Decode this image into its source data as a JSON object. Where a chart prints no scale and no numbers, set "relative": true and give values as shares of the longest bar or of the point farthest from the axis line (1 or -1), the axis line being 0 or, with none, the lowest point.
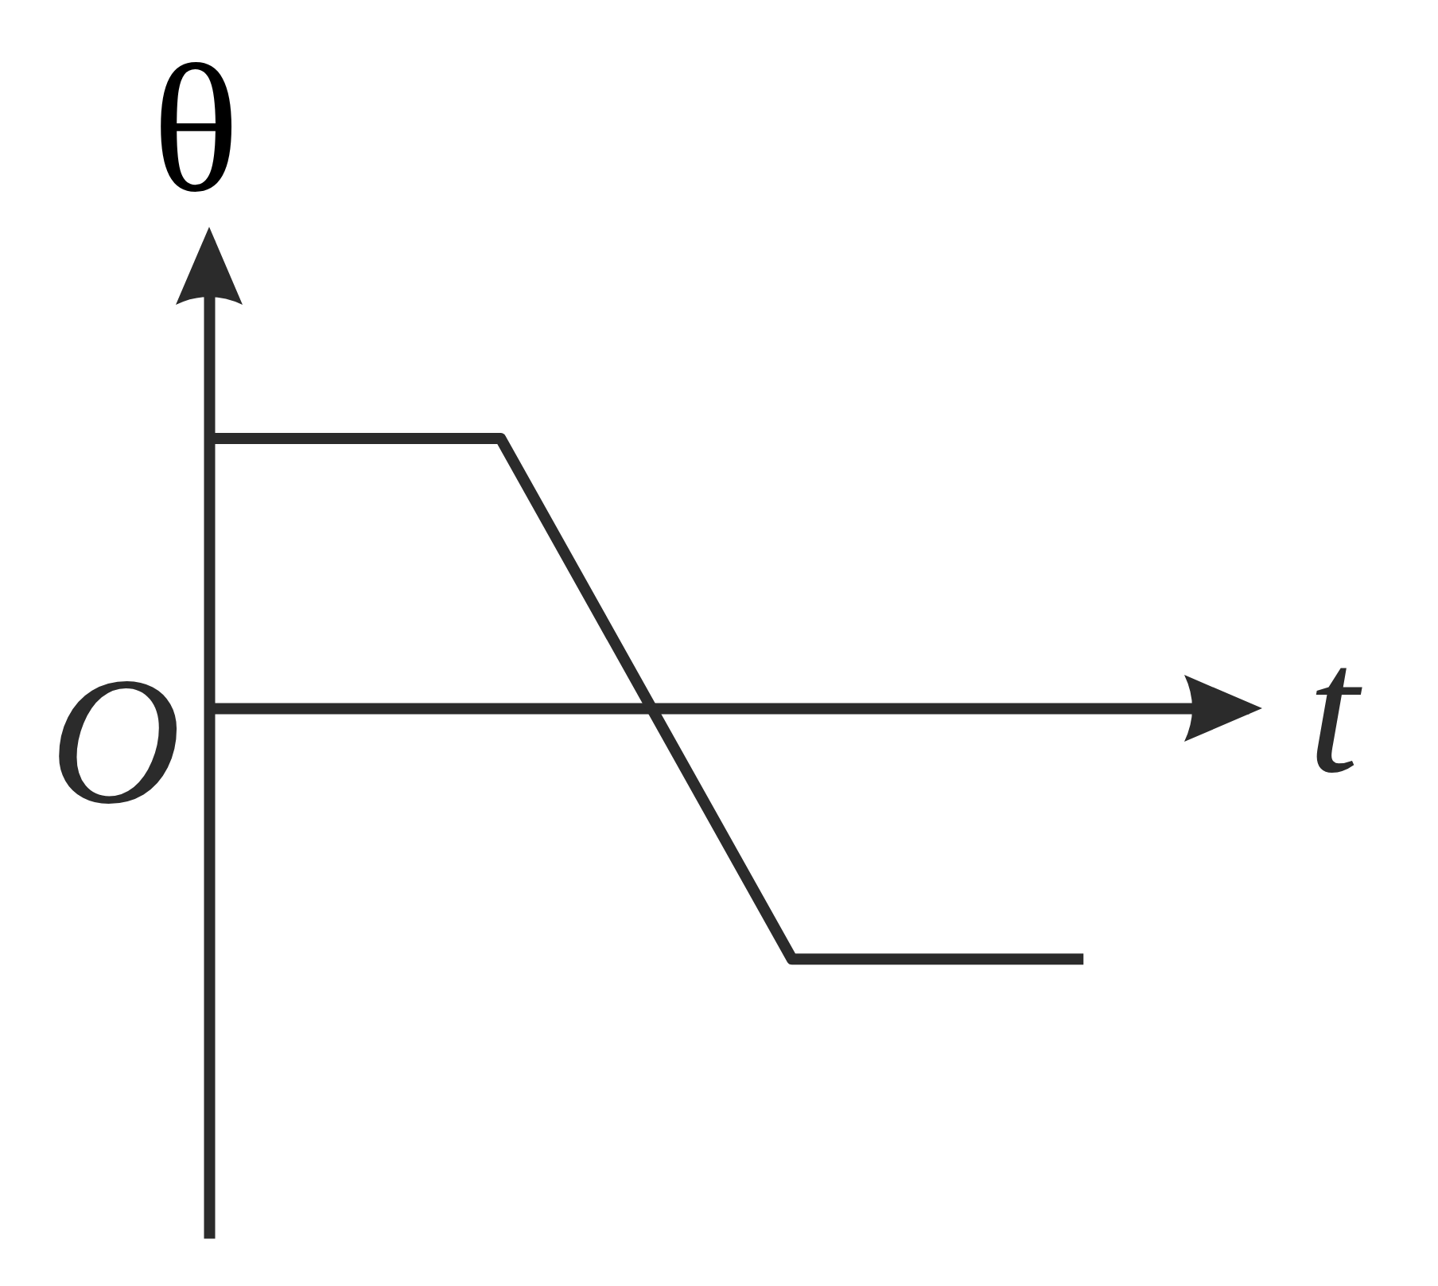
{
  "chart_data": {
    "type": "line",
    "xlabel": "t",
    "ylabel": "θ",
    "annotations": [
      "O"
    ],
    "relative": true,
    "categories": [
      null,
      null,
      null,
      null
    ],
    "series": [
      {
        "color": "#2b2b2b",
        "values": [
          1,
          1,
          -0.93,
          -0.93
        ]
      }
    ]
  }
}
